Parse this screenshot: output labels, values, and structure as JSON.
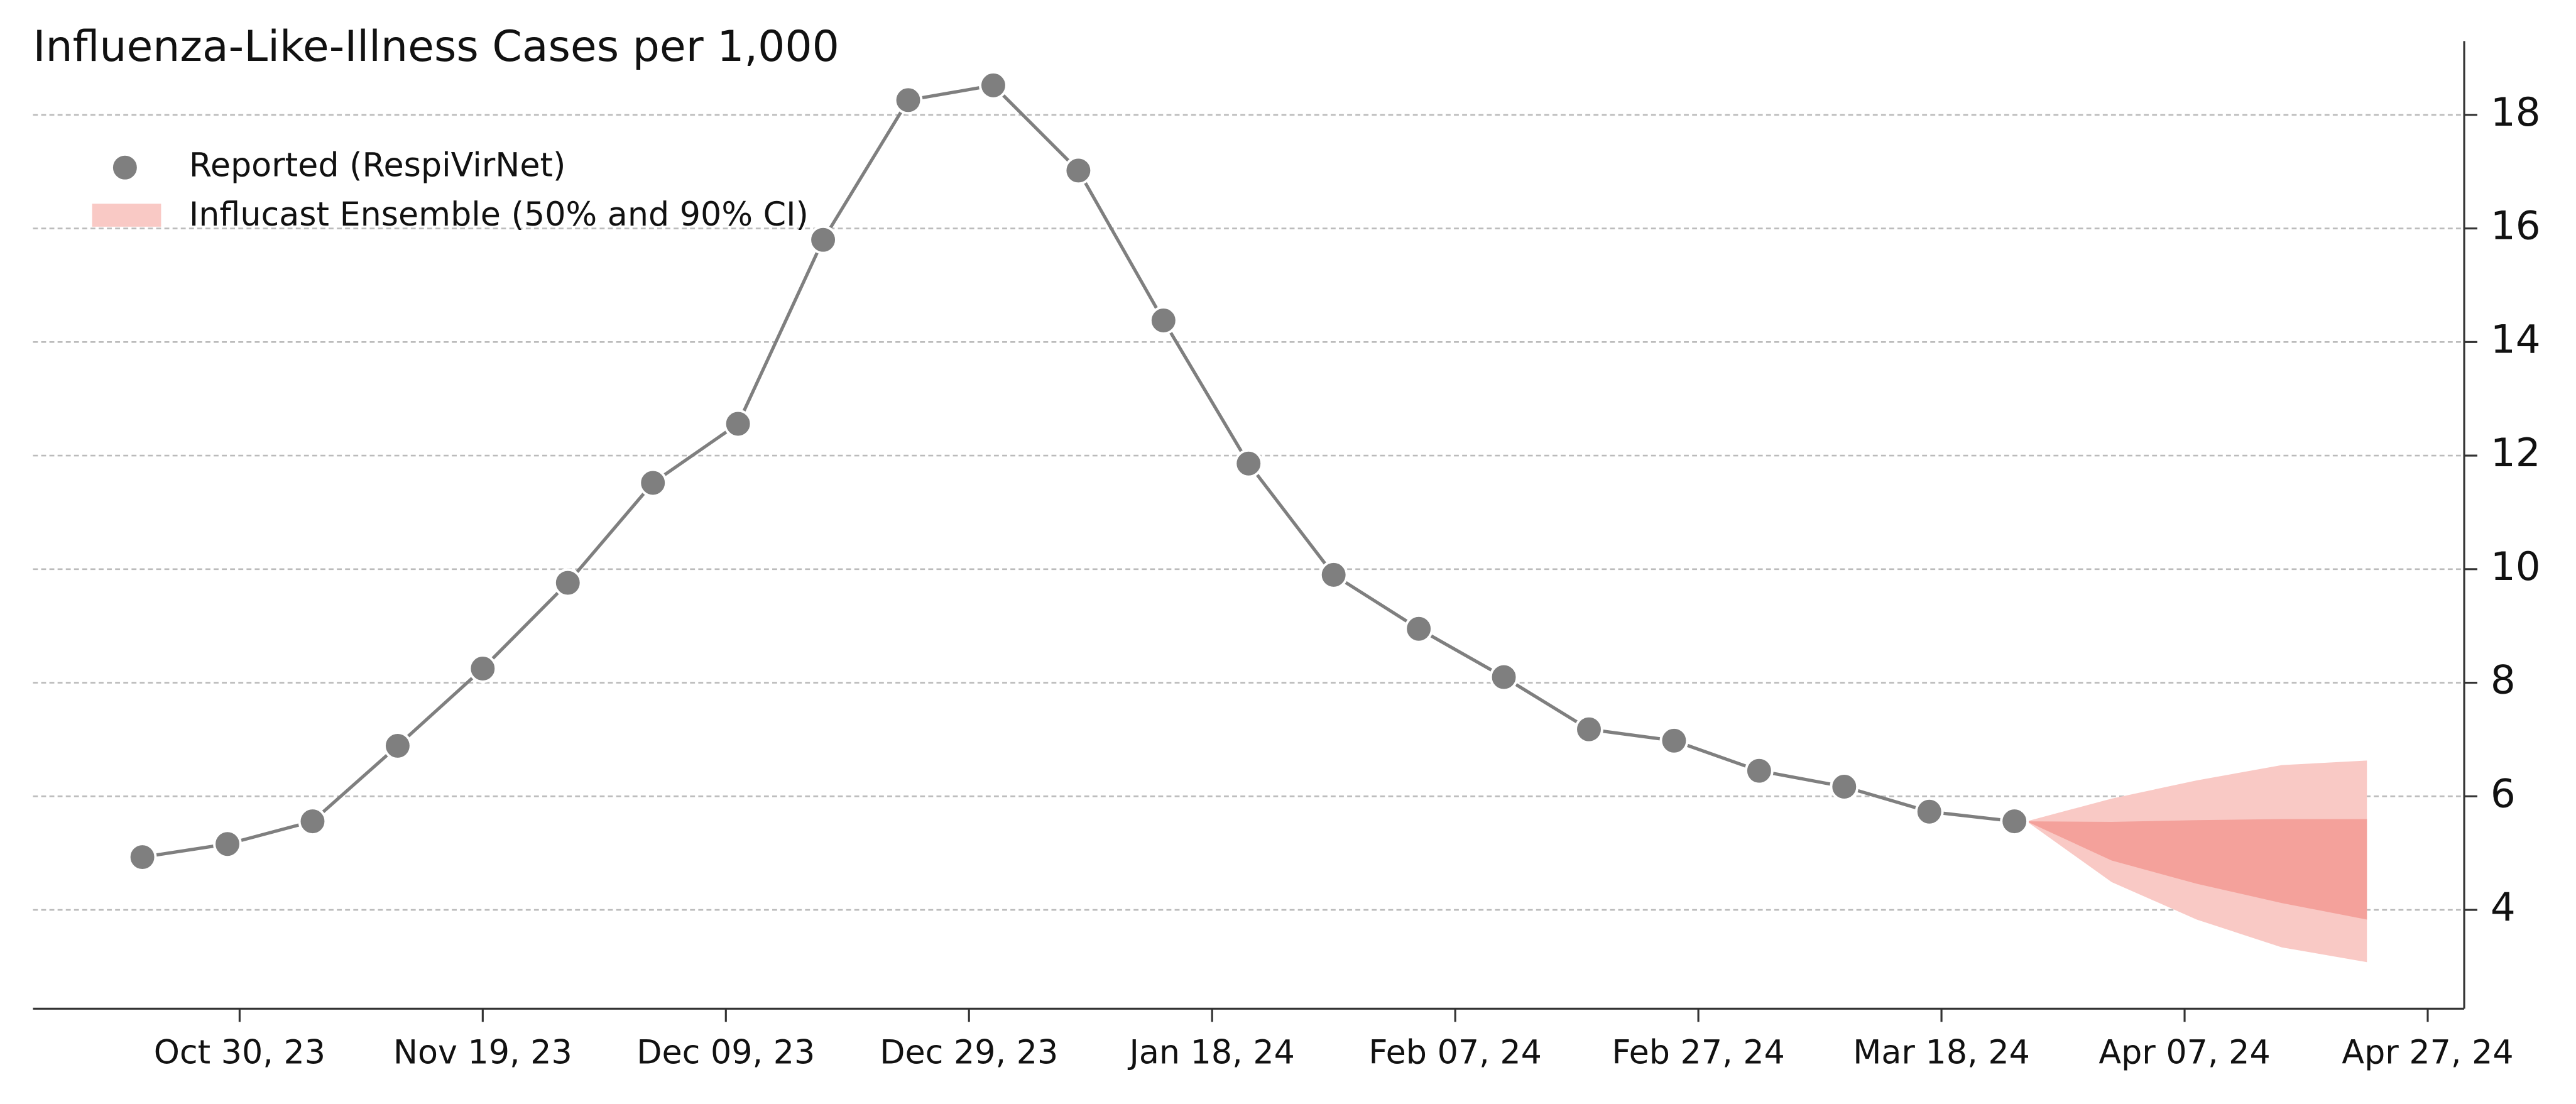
{
  "chart_data": {
    "type": "line",
    "title": "Influenza-Like-Illness Cases per 1,000",
    "x": [
      "2023-10-22",
      "2023-10-29",
      "2023-11-05",
      "2023-11-12",
      "2023-11-19",
      "2023-11-26",
      "2023-12-03",
      "2023-12-10",
      "2023-12-17",
      "2023-12-24",
      "2023-12-31",
      "2024-01-07",
      "2024-01-14",
      "2024-01-21",
      "2024-01-28",
      "2024-02-04",
      "2024-02-11",
      "2024-02-18",
      "2024-02-25",
      "2024-03-03",
      "2024-03-10",
      "2024-03-17",
      "2024-03-24"
    ],
    "series": [
      {
        "name": "Reported (RespiVirNet)",
        "color": "#7f7f7f",
        "values": [
          4.93,
          5.16,
          5.56,
          6.89,
          8.25,
          9.76,
          11.52,
          12.56,
          15.8,
          18.26,
          18.52,
          17.02,
          14.38,
          11.86,
          9.9,
          8.95,
          8.1,
          7.18,
          6.98,
          6.45,
          6.17,
          5.73,
          5.56
        ]
      }
    ],
    "forecast": {
      "name": "Influcast Ensemble (50% and 90% CI)",
      "color_90": "#f9c9c5",
      "color_50": "#f4a19b",
      "x": [
        "2024-03-25",
        "2024-04-01",
        "2024-04-08",
        "2024-04-15",
        "2024-04-22"
      ],
      "upper_90": [
        5.56,
        5.96,
        6.28,
        6.55,
        6.63
      ],
      "upper_50": [
        5.56,
        5.55,
        5.58,
        5.6,
        5.6
      ],
      "lower_50": [
        5.56,
        4.87,
        4.46,
        4.12,
        3.83
      ],
      "lower_90": [
        5.56,
        4.49,
        3.83,
        3.34,
        3.08
      ]
    },
    "xlim": [
      "2023-10-13",
      "2024-04-30"
    ],
    "xticks": [
      {
        "value": "2023-10-30",
        "label": "Oct 30, 23"
      },
      {
        "value": "2023-11-19",
        "label": "Nov 19, 23"
      },
      {
        "value": "2023-12-09",
        "label": "Dec 09, 23"
      },
      {
        "value": "2023-12-29",
        "label": "Dec 29, 23"
      },
      {
        "value": "2024-01-18",
        "label": "Jan 18, 24"
      },
      {
        "value": "2024-02-07",
        "label": "Feb 07, 24"
      },
      {
        "value": "2024-02-27",
        "label": "Feb 27, 24"
      },
      {
        "value": "2024-03-18",
        "label": "Mar 18, 24"
      },
      {
        "value": "2024-04-07",
        "label": "Apr 07, 24"
      },
      {
        "value": "2024-04-27",
        "label": "Apr 27, 24"
      }
    ],
    "ylim": [
      2.26,
      19.3
    ],
    "yticks": [
      4,
      6,
      8,
      10,
      12,
      14,
      16,
      18
    ],
    "grid": true,
    "legend": "upper left",
    "title_color": "#f08a7e"
  }
}
